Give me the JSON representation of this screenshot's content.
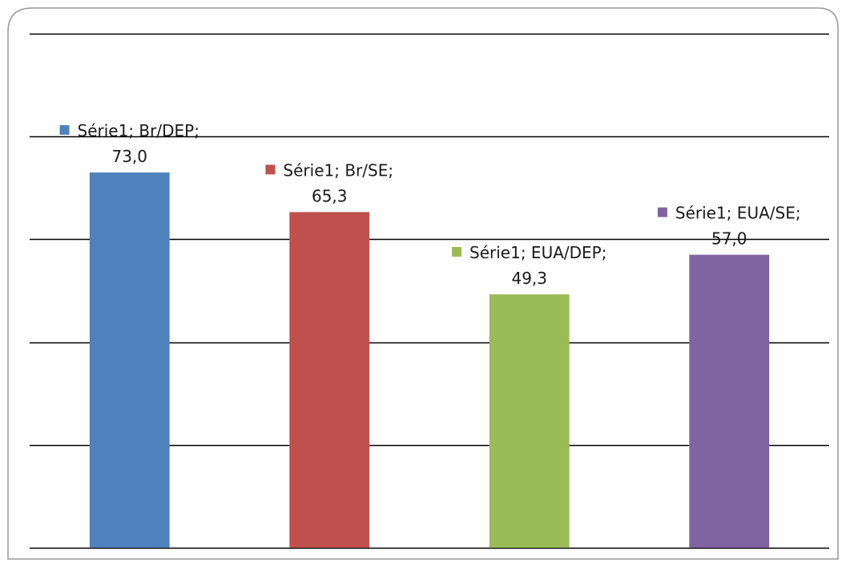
{
  "chart_data": {
    "type": "bar",
    "categories": [
      "Br/DEP",
      "Br/SE",
      "EUA/DEP",
      "EUA/SE"
    ],
    "series": [
      {
        "values": [
          73.0,
          65.3,
          49.3,
          57.0
        ]
      }
    ],
    "data_labels": [
      {
        "line1": "Série1; Br/DEP;",
        "line2": "73,0",
        "color": "#4F81BD"
      },
      {
        "line1": "Série1; Br/SE;",
        "line2": "65,3",
        "color": "#C0504D"
      },
      {
        "line1": "Série1; EUA/DEP;",
        "line2": "49,3",
        "color": "#9BBB59"
      },
      {
        "line1": "Série1; EUA/SE;",
        "line2": "57,0",
        "color": "#8064A2"
      }
    ],
    "colors": [
      "#4F81BD",
      "#C0504D",
      "#9BBB59",
      "#8064A2"
    ],
    "ylim": [
      0,
      100
    ],
    "y_grid_step": 20,
    "grid": true,
    "axes_visible": false,
    "legend": "none"
  }
}
